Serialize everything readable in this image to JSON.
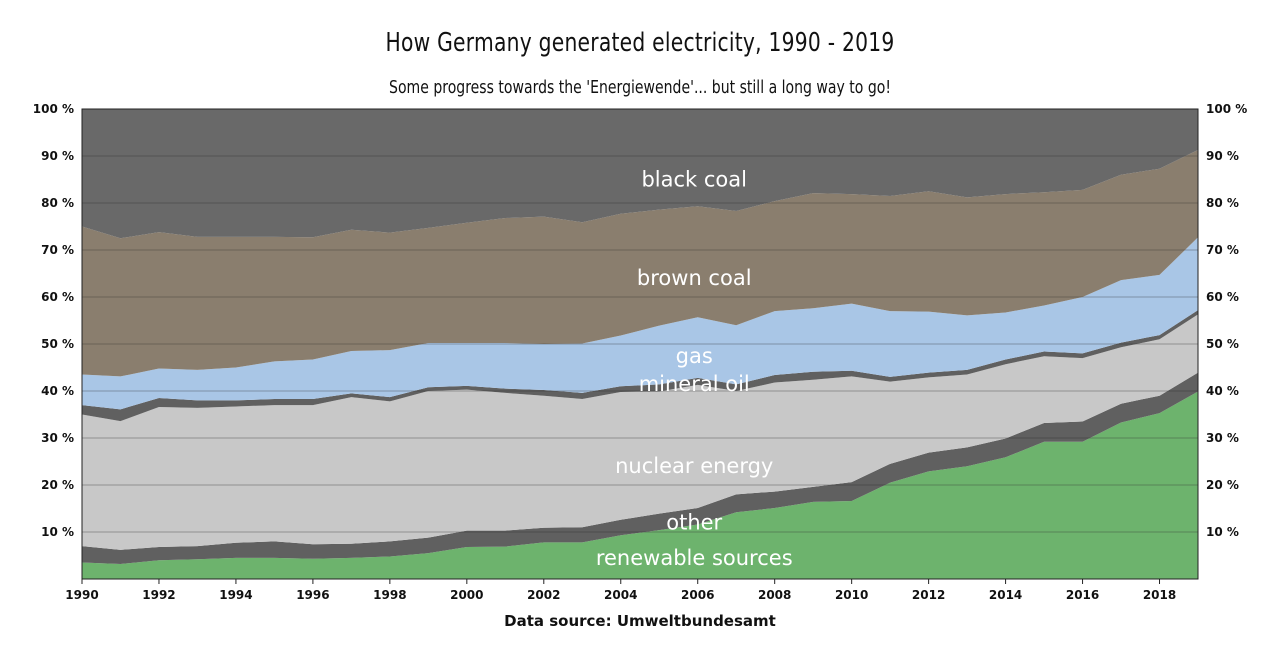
{
  "chart_data": {
    "type": "area",
    "stacked": true,
    "title": "How Germany generated electricity, 1990 - 2019",
    "subtitle": "Some progress towards the 'Energiewende'... but still a long way to go!",
    "source": "Data source: Umweltbundesamt",
    "x": [
      1990,
      1991,
      1992,
      1993,
      1994,
      1995,
      1996,
      1997,
      1998,
      1999,
      2000,
      2001,
      2002,
      2003,
      2004,
      2005,
      2006,
      2007,
      2008,
      2009,
      2010,
      2011,
      2012,
      2013,
      2014,
      2015,
      2016,
      2017,
      2018,
      2019
    ],
    "xticks": [
      "1990",
      "1992",
      "1994",
      "1996",
      "1998",
      "2000",
      "2002",
      "2004",
      "2006",
      "2008",
      "2010",
      "2012",
      "2014",
      "2016",
      "2018"
    ],
    "yticks": [
      "10 %",
      "20 %",
      "30 %",
      "40 %",
      "50 %",
      "60 %",
      "70 %",
      "80 %",
      "90 %",
      "100 %"
    ],
    "ylim": [
      0,
      100
    ],
    "grid": true,
    "series": [
      {
        "name": "renewable sources",
        "color": "#6db36d",
        "values": [
          3.5,
          3.2,
          4.0,
          4.2,
          4.5,
          4.5,
          4.3,
          4.5,
          4.8,
          5.5,
          6.8,
          6.9,
          7.8,
          7.8,
          9.3,
          10.4,
          11.6,
          14.2,
          15.1,
          16.4,
          16.6,
          20.5,
          22.9,
          24.0,
          25.9,
          29.2,
          29.2,
          33.3,
          35.3,
          39.9
        ]
      },
      {
        "name": "other",
        "color": "#606060",
        "values": [
          3.5,
          3.0,
          2.8,
          2.8,
          3.2,
          3.5,
          3.1,
          3.0,
          3.2,
          3.3,
          3.5,
          3.4,
          3.1,
          3.2,
          3.3,
          3.5,
          3.5,
          3.8,
          3.5,
          3.2,
          4.0,
          4.0,
          4.0,
          4.0,
          4.0,
          4.0,
          4.3,
          4.0,
          3.7,
          4.0
        ]
      },
      {
        "name": "nuclear energy",
        "color": "#c8c8c8",
        "values": [
          28.0,
          27.4,
          29.8,
          29.4,
          29.0,
          29.0,
          29.6,
          31.2,
          29.8,
          31.2,
          30.0,
          29.3,
          28.1,
          27.3,
          27.2,
          26.0,
          26.2,
          22.0,
          23.2,
          22.8,
          22.5,
          17.5,
          16.0,
          15.5,
          15.8,
          14.2,
          13.5,
          12.0,
          12.0,
          12.4
        ]
      },
      {
        "name": "mineral oil",
        "color": "#606060",
        "values": [
          2.0,
          2.5,
          1.9,
          1.6,
          1.3,
          1.3,
          1.3,
          0.8,
          0.9,
          0.8,
          0.8,
          0.9,
          1.2,
          1.3,
          1.2,
          1.5,
          1.5,
          1.4,
          1.6,
          1.7,
          1.2,
          1.0,
          1.0,
          1.0,
          1.0,
          1.0,
          1.0,
          1.0,
          0.9,
          0.9
        ]
      },
      {
        "name": "gas",
        "color": "#a9c6e6",
        "values": [
          6.5,
          7.0,
          6.3,
          6.5,
          7.0,
          8.0,
          8.4,
          9.0,
          10.0,
          9.4,
          9.1,
          9.7,
          9.8,
          10.5,
          10.8,
          12.5,
          12.9,
          12.6,
          13.6,
          13.5,
          14.3,
          14.0,
          13.0,
          11.6,
          10.0,
          9.8,
          12.0,
          13.3,
          12.8,
          15.5
        ]
      },
      {
        "name": "brown coal",
        "color": "#8a7e6e",
        "values": [
          31.5,
          29.4,
          29.0,
          28.3,
          27.8,
          26.5,
          26.0,
          25.8,
          25.0,
          24.5,
          25.6,
          26.6,
          27.1,
          25.8,
          25.9,
          24.7,
          23.6,
          24.3,
          23.4,
          24.5,
          23.3,
          24.5,
          25.6,
          25.1,
          25.2,
          24.1,
          22.8,
          22.4,
          22.6,
          18.6
        ]
      },
      {
        "name": "black coal",
        "color": "#696969",
        "values": [
          25.0,
          27.5,
          26.2,
          27.2,
          27.2,
          27.2,
          27.3,
          25.7,
          27.3,
          25.3,
          24.2,
          23.2,
          22.9,
          24.1,
          22.3,
          21.4,
          21.3,
          21.7,
          19.6,
          17.9,
          18.1,
          18.5,
          17.5,
          18.8,
          18.1,
          17.7,
          17.2,
          14.0,
          12.7,
          8.7
        ]
      }
    ],
    "labels": [
      {
        "text": "black coal",
        "year": 2005,
        "value": 85
      },
      {
        "text": "brown coal",
        "year": 2005,
        "value": 64
      },
      {
        "text": "gas",
        "year": 2005,
        "value": 47.5
      },
      {
        "text": "mineral oil",
        "year": 2005,
        "value": 41.5
      },
      {
        "text": "nuclear energy",
        "year": 2005,
        "value": 24
      },
      {
        "text": "other",
        "year": 2005,
        "value": 12
      },
      {
        "text": "renewable sources",
        "year": 2005,
        "value": 4.5
      }
    ]
  }
}
